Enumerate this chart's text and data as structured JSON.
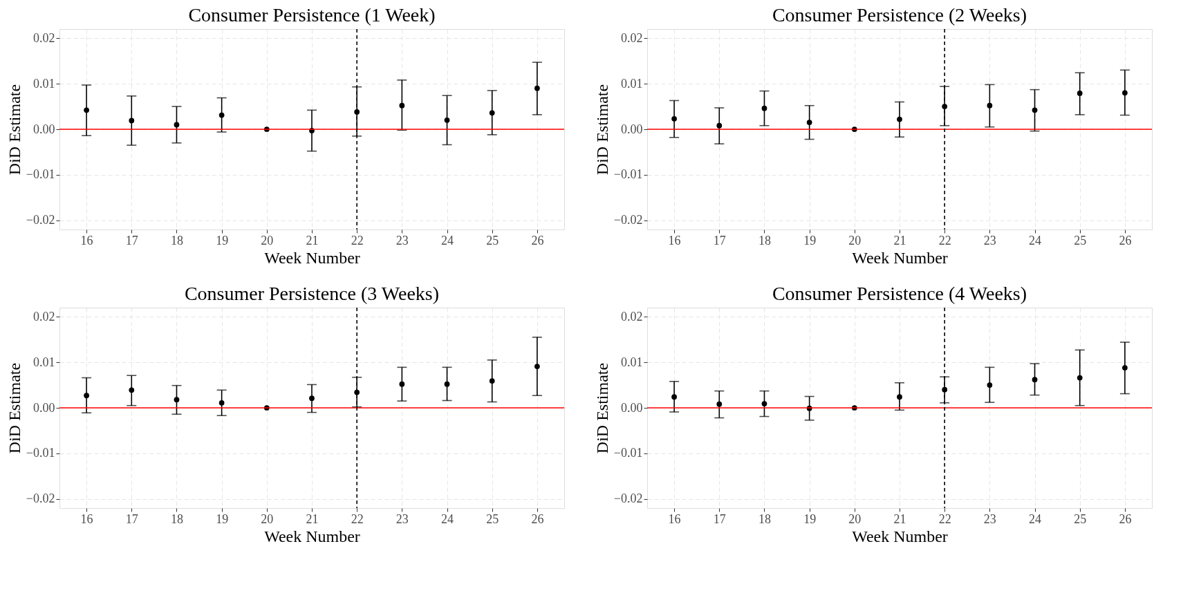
{
  "chart_data": [
    {
      "type": "scatter",
      "title": "Consumer Persistence (1 Week)",
      "xlabel": "Week Number",
      "ylabel": "DiD Estimate",
      "x": [
        16,
        17,
        18,
        19,
        20,
        21,
        22,
        23,
        24,
        25,
        26
      ],
      "xlim": [
        15.4,
        26.6
      ],
      "xticks": [
        16,
        17,
        18,
        19,
        20,
        21,
        22,
        23,
        24,
        25,
        26
      ],
      "ylim": [
        -0.022,
        0.022
      ],
      "yticks": [
        {
          "value": -0.02,
          "label": "−0.02"
        },
        {
          "value": -0.01,
          "label": "−0.01"
        },
        {
          "value": 0,
          "label": "0.00"
        },
        {
          "value": 0.01,
          "label": "0.01"
        },
        {
          "value": 0.02,
          "label": "0.02"
        }
      ],
      "grid": true,
      "marker": "circle",
      "series": [
        {
          "color": "#000000",
          "values": [
            0.0042,
            0.0019,
            0.001,
            0.0031,
            0,
            -0.0003,
            0.0038,
            0.0052,
            0.002,
            0.0036,
            0.009
          ],
          "errors": [
            [
              -0.0014,
              0.0097
            ],
            [
              -0.0035,
              0.0073
            ],
            [
              -0.003,
              0.005
            ],
            [
              -0.0006,
              0.0069
            ],
            null,
            [
              -0.0048,
              0.0042
            ],
            [
              -0.0015,
              0.0093
            ],
            [
              -0.0002,
              0.0108
            ],
            [
              -0.0034,
              0.0074
            ],
            [
              -0.0012,
              0.0085
            ],
            [
              0.0032,
              0.0147
            ]
          ]
        }
      ],
      "ref_lines": [
        {
          "axis": "y",
          "value": 0,
          "color": "#ff0000",
          "line_style": "solid"
        },
        {
          "axis": "x",
          "value": 22,
          "color": "#000000",
          "line_style": "dashed"
        }
      ]
    },
    {
      "type": "scatter",
      "title": "Consumer Persistence (2 Weeks)",
      "xlabel": "Week Number",
      "ylabel": "DiD Estimate",
      "x": [
        16,
        17,
        18,
        19,
        20,
        21,
        22,
        23,
        24,
        25,
        26
      ],
      "xlim": [
        15.4,
        26.6
      ],
      "xticks": [
        16,
        17,
        18,
        19,
        20,
        21,
        22,
        23,
        24,
        25,
        26
      ],
      "ylim": [
        -0.022,
        0.022
      ],
      "yticks": [
        {
          "value": -0.02,
          "label": "−0.02"
        },
        {
          "value": -0.01,
          "label": "−0.01"
        },
        {
          "value": 0,
          "label": "0.00"
        },
        {
          "value": 0.01,
          "label": "0.01"
        },
        {
          "value": 0.02,
          "label": "0.02"
        }
      ],
      "grid": true,
      "marker": "circle",
      "series": [
        {
          "color": "#000000",
          "values": [
            0.0023,
            0.0008,
            0.0046,
            0.0015,
            0,
            0.0022,
            0.005,
            0.0052,
            0.0042,
            0.0079,
            0.008
          ],
          "errors": [
            [
              -0.0018,
              0.0063
            ],
            [
              -0.0032,
              0.0047
            ],
            [
              0.0008,
              0.0084
            ],
            [
              -0.0022,
              0.0052
            ],
            null,
            [
              -0.0017,
              0.006
            ],
            [
              0.0008,
              0.0094
            ],
            [
              0.0005,
              0.0098
            ],
            [
              -0.0004,
              0.0087
            ],
            [
              0.0032,
              0.0124
            ],
            [
              0.0031,
              0.013
            ]
          ]
        }
      ],
      "ref_lines": [
        {
          "axis": "y",
          "value": 0,
          "color": "#ff0000",
          "line_style": "solid"
        },
        {
          "axis": "x",
          "value": 22,
          "color": "#000000",
          "line_style": "dashed"
        }
      ]
    },
    {
      "type": "scatter",
      "title": "Consumer Persistence (3 Weeks)",
      "xlabel": "Week Number",
      "ylabel": "DiD Estimate",
      "x": [
        16,
        17,
        18,
        19,
        20,
        21,
        22,
        23,
        24,
        25,
        26
      ],
      "xlim": [
        15.4,
        26.6
      ],
      "xticks": [
        16,
        17,
        18,
        19,
        20,
        21,
        22,
        23,
        24,
        25,
        26
      ],
      "ylim": [
        -0.022,
        0.022
      ],
      "yticks": [
        {
          "value": -0.02,
          "label": "−0.02"
        },
        {
          "value": -0.01,
          "label": "−0.01"
        },
        {
          "value": 0,
          "label": "0.00"
        },
        {
          "value": 0.01,
          "label": "0.01"
        },
        {
          "value": 0.02,
          "label": "0.02"
        }
      ],
      "grid": true,
      "marker": "circle",
      "series": [
        {
          "color": "#000000",
          "values": [
            0.0027,
            0.0039,
            0.0018,
            0.0011,
            0,
            0.0021,
            0.0034,
            0.0052,
            0.0052,
            0.0059,
            0.0091
          ],
          "errors": [
            [
              -0.0011,
              0.0066
            ],
            [
              0.0005,
              0.0071
            ],
            [
              -0.0014,
              0.0049
            ],
            [
              -0.0017,
              0.0039
            ],
            null,
            [
              -0.001,
              0.0051
            ],
            [
              0.0002,
              0.0067
            ],
            [
              0.0015,
              0.0089
            ],
            [
              0.0016,
              0.0089
            ],
            [
              0.0013,
              0.0105
            ],
            [
              0.0027,
              0.0155
            ]
          ]
        }
      ],
      "ref_lines": [
        {
          "axis": "y",
          "value": 0,
          "color": "#ff0000",
          "line_style": "solid"
        },
        {
          "axis": "x",
          "value": 22,
          "color": "#000000",
          "line_style": "dashed"
        }
      ]
    },
    {
      "type": "scatter",
      "title": "Consumer Persistence (4 Weeks)",
      "xlabel": "Week Number",
      "ylabel": "DiD Estimate",
      "x": [
        16,
        17,
        18,
        19,
        20,
        21,
        22,
        23,
        24,
        25,
        26
      ],
      "xlim": [
        15.4,
        26.6
      ],
      "xticks": [
        16,
        17,
        18,
        19,
        20,
        21,
        22,
        23,
        24,
        25,
        26
      ],
      "ylim": [
        -0.022,
        0.022
      ],
      "yticks": [
        {
          "value": -0.02,
          "label": "−0.02"
        },
        {
          "value": -0.01,
          "label": "−0.01"
        },
        {
          "value": 0,
          "label": "0.00"
        },
        {
          "value": 0.01,
          "label": "0.01"
        },
        {
          "value": 0.02,
          "label": "0.02"
        }
      ],
      "grid": true,
      "marker": "circle",
      "series": [
        {
          "color": "#000000",
          "values": [
            0.0024,
            0.0008,
            0.0009,
            -0.0001,
            0,
            0.0024,
            0.004,
            0.005,
            0.0062,
            0.0066,
            0.0088
          ],
          "errors": [
            [
              -0.0009,
              0.0058
            ],
            [
              -0.0022,
              0.0037
            ],
            [
              -0.0019,
              0.0037
            ],
            [
              -0.0027,
              0.0025
            ],
            null,
            [
              -0.0005,
              0.0055
            ],
            [
              0.0011,
              0.0068
            ],
            [
              0.0012,
              0.0089
            ],
            [
              0.0028,
              0.0097
            ],
            [
              0.0005,
              0.0127
            ],
            [
              0.0031,
              0.0144
            ]
          ]
        }
      ],
      "ref_lines": [
        {
          "axis": "y",
          "value": 0,
          "color": "#ff0000",
          "line_style": "solid"
        },
        {
          "axis": "x",
          "value": 22,
          "color": "#000000",
          "line_style": "dashed"
        }
      ]
    }
  ]
}
